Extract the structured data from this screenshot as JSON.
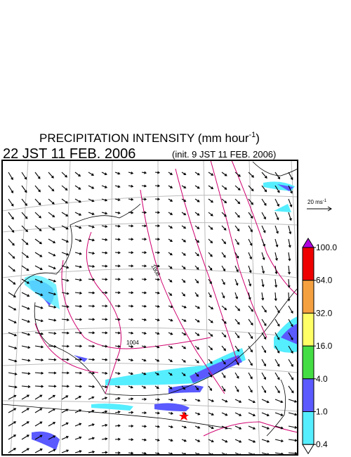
{
  "header": {
    "title": {
      "text": "PRECIPITATION INTENSITY (mm hour",
      "superscript": "-1",
      "close": ")"
    },
    "valid_time": "22 JST 11 FEB. 2006",
    "init_time": "(init. 9 JST 11 FEB. 2006)"
  },
  "wind_scale": {
    "text": "20 ms",
    "superscript": "-1"
  },
  "contour_labels": [
    "1008",
    "1004"
  ],
  "colorbar": {
    "levels": [
      {
        "value": 100,
        "label": "100.0"
      },
      {
        "value": 64,
        "label": "64.0"
      },
      {
        "value": 32,
        "label": "32.0"
      },
      {
        "value": 16,
        "label": "16.0"
      },
      {
        "value": 4,
        "label": "4.0"
      },
      {
        "value": 1,
        "label": "1.0"
      },
      {
        "value": 0.4,
        "label": "0.4"
      }
    ],
    "colors": [
      "#ee0000",
      "#f5a040",
      "#ffff66",
      "#44dd44",
      "#5a5aff",
      "#55eeff"
    ],
    "over_color": "#b000e0",
    "under_color": "#ffffff"
  }
}
